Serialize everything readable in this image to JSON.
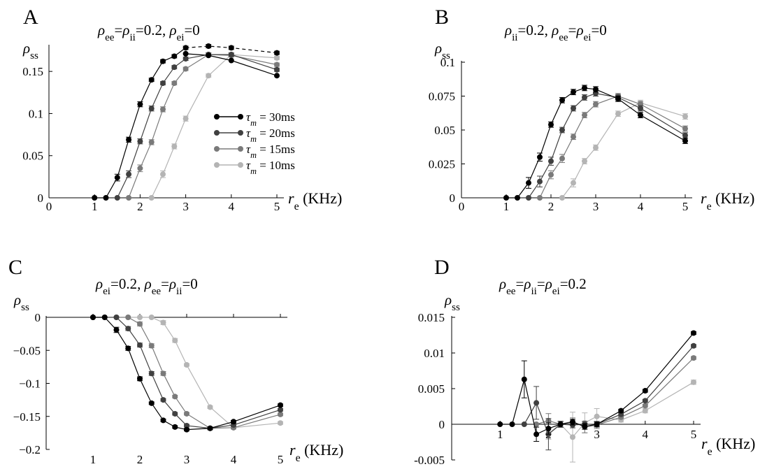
{
  "chart_data": [
    {
      "letter": "A",
      "type": "line",
      "title_parts": [
        {
          "t": "ρ",
          "it": true
        },
        {
          "t": "ee",
          "sub": true
        },
        {
          "t": "="
        },
        {
          "t": "ρ",
          "it": true
        },
        {
          "t": "ii",
          "sub": true
        },
        {
          "t": "=0.2,   "
        },
        {
          "t": "ρ",
          "it": true
        },
        {
          "t": "ei",
          "sub": true
        },
        {
          "t": "=0"
        }
      ],
      "ylabel": {
        "main": "ρ",
        "sub": "ss"
      },
      "xlabel": {
        "main": "r",
        "sub": "e",
        "unit": " (KHz)"
      },
      "xlim": [
        0,
        5
      ],
      "ylim": [
        0,
        0.18
      ],
      "xticks": [
        0,
        1,
        2,
        3,
        4,
        5
      ],
      "xtick_labels": [
        "0",
        "1",
        "2",
        "3",
        "4",
        "5"
      ],
      "yticks": [
        0,
        0.05,
        0.1,
        0.15
      ],
      "ytick_labels": [
        "0",
        "0.05",
        "0.1",
        "0.15"
      ],
      "legend": true,
      "series": [
        {
          "name": "30ms",
          "color": "#000000",
          "x": [
            1,
            1.25,
            1.5,
            1.75,
            2,
            2.25,
            2.5,
            2.75,
            3,
            3.5,
            4,
            5
          ],
          "y": [
            0,
            0,
            0.024,
            0.069,
            0.111,
            0.14,
            0.162,
            0.168,
            0.178,
            0.18,
            0.178,
            0.172
          ],
          "err": [
            0,
            0,
            0.004,
            0.003,
            0.003,
            0.002,
            0.002,
            0.002,
            0.002,
            0.002,
            0.002,
            0.002
          ],
          "dashed_tail": true
        },
        {
          "name": "20ms",
          "color": "#404040",
          "x": [
            1.5,
            1.75,
            2,
            2.25,
            2.5,
            2.75,
            3,
            3.5,
            4,
            5
          ],
          "y": [
            0,
            0.028,
            0.067,
            0.106,
            0.136,
            0.155,
            0.165,
            0.17,
            0.17,
            0.152
          ],
          "err": [
            0,
            0.004,
            0.003,
            0.003,
            0.002,
            0.002,
            0.002,
            0.002,
            0.002,
            0.002
          ],
          "dashed_tail": false
        },
        {
          "name": "15ms",
          "color": "#7a7a7a",
          "x": [
            1.75,
            2,
            2.25,
            2.5,
            2.75,
            3,
            3.5,
            4,
            5
          ],
          "y": [
            0,
            0.035,
            0.066,
            0.105,
            0.136,
            0.153,
            0.17,
            0.169,
            0.158
          ],
          "err": [
            0,
            0.004,
            0.003,
            0.003,
            0.002,
            0.002,
            0.002,
            0.002,
            0.002
          ],
          "dashed_tail": false
        },
        {
          "name": "10ms",
          "color": "#b4b4b4",
          "x": [
            2.25,
            2.5,
            2.75,
            3,
            3.5,
            4,
            5
          ],
          "y": [
            0,
            0.028,
            0.061,
            0.094,
            0.145,
            0.17,
            0.166
          ],
          "err": [
            0,
            0.004,
            0.003,
            0.003,
            0.002,
            0.002,
            0.002
          ],
          "dashed_tail": false
        }
      ],
      "last_line": {
        "from_series": "30ms",
        "note": ""
      },
      "extra_black_line": {
        "x": [
          3,
          3.5,
          4,
          5
        ],
        "y": [
          0.171,
          0.169,
          0.163,
          0.145
        ]
      }
    },
    {
      "letter": "B",
      "type": "line",
      "title_parts": [
        {
          "t": "ρ",
          "it": true
        },
        {
          "t": "ii",
          "sub": true
        },
        {
          "t": "=0.2,   "
        },
        {
          "t": "ρ",
          "it": true
        },
        {
          "t": "ee",
          "sub": true
        },
        {
          "t": "="
        },
        {
          "t": "ρ",
          "it": true
        },
        {
          "t": "ei",
          "sub": true
        },
        {
          "t": "=0"
        }
      ],
      "ylabel": {
        "main": "ρ",
        "sub": "ss"
      },
      "xlabel": {
        "main": "r",
        "sub": "e",
        "unit": " (KHz)"
      },
      "xlim": [
        0,
        5
      ],
      "ylim": [
        0,
        0.1
      ],
      "xticks": [
        0,
        1,
        2,
        3,
        4,
        5
      ],
      "xtick_labels": [
        "0",
        "1",
        "2",
        "3",
        "4",
        "5"
      ],
      "yticks": [
        0,
        0.025,
        0.05,
        0.075,
        0.1
      ],
      "ytick_labels": [
        "0",
        "0.025",
        "0.05",
        "0.075",
        "0.1"
      ],
      "legend": false,
      "series": [
        {
          "name": "30ms",
          "color": "#000000",
          "x": [
            1,
            1.25,
            1.5,
            1.75,
            2,
            2.25,
            2.5,
            2.75,
            3,
            3.5,
            4,
            5
          ],
          "y": [
            0,
            0,
            0.011,
            0.03,
            0.054,
            0.072,
            0.078,
            0.081,
            0.08,
            0.073,
            0.061,
            0.042
          ],
          "err": [
            0,
            0,
            0.004,
            0.003,
            0.002,
            0.002,
            0.002,
            0.002,
            0.002,
            0.002,
            0.002,
            0.002
          ]
        },
        {
          "name": "20ms",
          "color": "#404040",
          "x": [
            1.5,
            1.75,
            2,
            2.25,
            2.5,
            2.75,
            3,
            3.5,
            4,
            5
          ],
          "y": [
            0,
            0.012,
            0.027,
            0.05,
            0.066,
            0.074,
            0.077,
            0.074,
            0.066,
            0.046
          ],
          "err": [
            0,
            0.004,
            0.003,
            0.002,
            0.002,
            0.002,
            0.002,
            0.002,
            0.002,
            0.002
          ]
        },
        {
          "name": "15ms",
          "color": "#7a7a7a",
          "x": [
            1.75,
            2,
            2.25,
            2.5,
            2.75,
            3,
            3.5,
            4,
            5
          ],
          "y": [
            0,
            0.017,
            0.029,
            0.045,
            0.061,
            0.069,
            0.075,
            0.069,
            0.051
          ],
          "err": [
            0,
            0.003,
            0.003,
            0.002,
            0.002,
            0.002,
            0.002,
            0.002,
            0.002
          ]
        },
        {
          "name": "10ms",
          "color": "#b4b4b4",
          "x": [
            2.25,
            2.5,
            2.75,
            3,
            3.5,
            4,
            5
          ],
          "y": [
            0,
            0.011,
            0.027,
            0.037,
            0.062,
            0.07,
            0.06
          ],
          "err": [
            0,
            0.003,
            0.002,
            0.002,
            0.002,
            0.002,
            0.002
          ]
        }
      ]
    },
    {
      "letter": "C",
      "type": "line",
      "title_parts": [
        {
          "t": "ρ",
          "it": true
        },
        {
          "t": "ei",
          "sub": true
        },
        {
          "t": "=0.2,   "
        },
        {
          "t": "ρ",
          "it": true
        },
        {
          "t": "ee",
          "sub": true
        },
        {
          "t": "="
        },
        {
          "t": "ρ",
          "it": true
        },
        {
          "t": "ii",
          "sub": true
        },
        {
          "t": "=0"
        }
      ],
      "ylabel": {
        "main": "ρ",
        "sub": "ss"
      },
      "xlabel": {
        "main": "r",
        "sub": "e",
        "unit": " (KHz)"
      },
      "xlim": [
        0,
        5
      ],
      "ylim": [
        -0.2,
        0
      ],
      "xticks": [
        1,
        2,
        3,
        4,
        5
      ],
      "xtick_labels": [
        "1",
        "2",
        "3",
        "4",
        "5"
      ],
      "yticks": [
        0,
        -0.05,
        -0.1,
        -0.15,
        -0.2
      ],
      "ytick_labels": [
        "0",
        "−0.05",
        "−0.1",
        "−0.15",
        "−0.2"
      ],
      "legend": false,
      "series": [
        {
          "name": "30ms",
          "color": "#000000",
          "x": [
            1,
            1.25,
            1.5,
            1.75,
            2,
            2.25,
            2.5,
            2.75,
            3,
            3.5,
            4,
            5
          ],
          "y": [
            0,
            0,
            -0.019,
            -0.047,
            -0.093,
            -0.13,
            -0.156,
            -0.166,
            -0.17,
            -0.168,
            -0.158,
            -0.133
          ],
          "err": [
            0,
            0,
            0.004,
            0.003,
            0.003,
            0.002,
            0.002,
            0.002,
            0.002,
            0.002,
            0.002,
            0.002
          ]
        },
        {
          "name": "20ms",
          "color": "#404040",
          "x": [
            1,
            1.25,
            1.5,
            1.75,
            2,
            2.25,
            2.5,
            2.75,
            3,
            3.5,
            4,
            5
          ],
          "y": [
            0,
            0,
            0,
            -0.017,
            -0.042,
            -0.085,
            -0.125,
            -0.146,
            -0.164,
            -0.168,
            -0.163,
            -0.14
          ],
          "err": [
            0,
            0,
            0,
            0.003,
            0.003,
            0.003,
            0.002,
            0.002,
            0.002,
            0.002,
            0.002,
            0.002
          ]
        },
        {
          "name": "15ms",
          "color": "#7a7a7a",
          "x": [
            1.5,
            1.75,
            2,
            2.25,
            2.5,
            2.75,
            3,
            3.5,
            4,
            5
          ],
          "y": [
            0,
            0,
            -0.01,
            -0.043,
            -0.085,
            -0.12,
            -0.146,
            -0.168,
            -0.167,
            -0.147
          ],
          "err": [
            0,
            0,
            0.003,
            0.003,
            0.003,
            0.002,
            0.002,
            0.002,
            0.002,
            0.002
          ]
        },
        {
          "name": "10ms",
          "color": "#b4b4b4",
          "x": [
            1.75,
            2,
            2.25,
            2.5,
            2.75,
            3,
            3.5,
            4,
            5
          ],
          "y": [
            0,
            0,
            0,
            -0.008,
            -0.035,
            -0.072,
            -0.136,
            -0.167,
            -0.16
          ],
          "err": [
            0,
            0,
            0,
            0.003,
            0.003,
            0.002,
            0.002,
            0.002,
            0.002
          ]
        }
      ]
    },
    {
      "letter": "D",
      "type": "line",
      "title_parts": [
        {
          "t": "ρ",
          "it": true
        },
        {
          "t": "ee",
          "sub": true
        },
        {
          "t": "="
        },
        {
          "t": "ρ",
          "it": true
        },
        {
          "t": "ii",
          "sub": true
        },
        {
          "t": "="
        },
        {
          "t": "ρ",
          "it": true
        },
        {
          "t": "ei",
          "sub": true
        },
        {
          "t": "=0.2"
        }
      ],
      "ylabel": {
        "main": "ρ",
        "sub": "ss"
      },
      "xlabel": {
        "main": "r",
        "sub": "e",
        "unit": " (KHz)"
      },
      "xlim": [
        0,
        5
      ],
      "ylim": [
        -0.005,
        0.015
      ],
      "xticks": [
        1,
        2,
        3,
        4,
        5
      ],
      "xtick_labels": [
        "1",
        "2",
        "3",
        "4",
        "5"
      ],
      "yticks": [
        -0.005,
        0,
        0.005,
        0.01,
        0.015
      ],
      "ytick_labels": [
        "-0.005",
        "0",
        "0.005",
        "0.01",
        "0.015"
      ],
      "legend": false,
      "series": [
        {
          "name": "30ms",
          "color": "#000000",
          "x": [
            1,
            1.25,
            1.5,
            1.75,
            2,
            2.25,
            2.5,
            2.75,
            3,
            3.5,
            4,
            5
          ],
          "y": [
            0,
            0,
            0.0063,
            -0.0014,
            -0.0006,
            0,
            0.0003,
            -0.0003,
            0,
            0.0019,
            0.0047,
            0.0128
          ],
          "err": [
            0,
            0,
            0.0026,
            0.001,
            0.0008,
            0.0004,
            0.0004,
            0.0004,
            0.0003,
            0.0002,
            0.0002,
            0.0002
          ]
        },
        {
          "name": "20ms",
          "color": "#404040",
          "x": [
            1.5,
            1.75,
            2,
            2.25,
            2.5,
            2.75,
            3,
            3.5,
            4,
            5
          ],
          "y": [
            0,
            0.003,
            -0.0014,
            0,
            -0.0001,
            0,
            0,
            0.0014,
            0.0033,
            0.011
          ],
          "err": [
            0,
            0.0023,
            0.0022,
            0.0004,
            0.0004,
            0.0004,
            0.0004,
            0.0002,
            0.0002,
            0.0002
          ]
        },
        {
          "name": "15ms",
          "color": "#7a7a7a",
          "x": [
            1.75,
            2,
            2.25,
            2.5,
            2.75,
            3,
            3.5,
            4,
            5
          ],
          "y": [
            0,
            0.0005,
            0,
            0.0004,
            -0.0004,
            -0.0001,
            0.001,
            0.0026,
            0.0093
          ],
          "err": [
            0,
            0.001,
            0.0004,
            0.0005,
            0.0008,
            0.0005,
            0.0002,
            0.0002,
            0.0002
          ]
        },
        {
          "name": "10ms",
          "color": "#b4b4b4",
          "x": [
            2,
            2.25,
            2.5,
            2.75,
            3,
            3.5,
            4,
            5
          ],
          "y": [
            -0.0013,
            0,
            -0.0018,
            0.0002,
            0.0011,
            0.0006,
            0.0019,
            0.0059
          ],
          "err": [
            0.0008,
            0.0004,
            0.0035,
            0.0014,
            0.0011,
            0.0003,
            0.0003,
            0.0003
          ]
        }
      ]
    }
  ],
  "legend_entries": [
    {
      "symbol": "τ",
      "sub": "m",
      "text": " = 30ms",
      "color": "#000000"
    },
    {
      "symbol": "τ",
      "sub": "m",
      "text": " = 20ms",
      "color": "#404040"
    },
    {
      "symbol": "τ",
      "sub": "m",
      "text": " = 15ms",
      "color": "#7a7a7a"
    },
    {
      "symbol": "τ",
      "sub": "m",
      "text": " = 10ms",
      "color": "#b4b4b4"
    }
  ]
}
